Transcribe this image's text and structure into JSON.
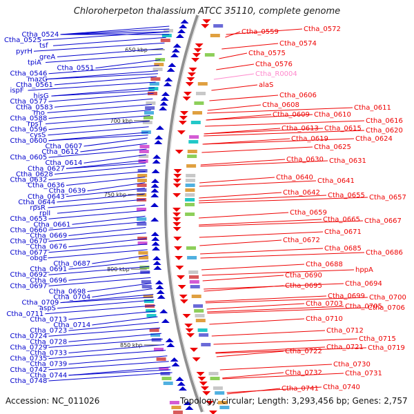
{
  "title": "Chloroherpeton thalassium ATCC 35110, complete genome",
  "accession_text": "Accession: NC_011026",
  "topology_text": "Topology: circular; Length: 3,293,456 bp; Genes: 2,757",
  "colors": {
    "forward_strand": "#0000cc",
    "reverse_strand": "#ee0000",
    "rna_label": "#ff88cc",
    "backbone": "#909090"
  },
  "kbp_marks": [
    "650 kbp",
    "700 kbp",
    "750 kbp",
    "800 kbp",
    "850 kbp"
  ],
  "left_labels": [
    "Ctha_0524",
    "Ctha_0525",
    "tsf",
    "pyrH",
    "greA",
    "tpiA",
    "Ctha_0551",
    "Ctha_0546",
    "mazG",
    "Ctha_0561",
    "ispF",
    "hisG",
    "Ctha_0577",
    "Ctha_0583",
    "rho",
    "Ctha_0588",
    "rpsT",
    "Ctha_0596",
    "cysS",
    "Ctha_0600",
    "Ctha_0607",
    "Ctha_0612",
    "Ctha_0605",
    "Ctha_0614",
    "Ctha_0627",
    "Ctha_0628",
    "Ctha_0632",
    "Ctha_0636",
    "Ctha_0639",
    "Ctha_0643",
    "Ctha_0644",
    "rpsR",
    "rplI",
    "Ctha_0653",
    "Ctha_0661",
    "Ctha_0660",
    "Ctha_0669",
    "Ctha_0670",
    "Ctha_0676",
    "Ctha_0677",
    "obgE",
    "Ctha_0687",
    "Ctha_0691",
    "Ctha_0692",
    "Ctha_0696",
    "Ctha_0697",
    "Ctha_0698",
    "Ctha_0704",
    "Ctha_0709",
    "aspS",
    "Ctha_0711",
    "Ctha_0713",
    "Ctha_0714",
    "Ctha_0723",
    "Ctha_0724",
    "Ctha_0728",
    "Ctha_0729",
    "Ctha_0733",
    "Ctha_0735",
    "Ctha_0739",
    "Ctha_0742",
    "Ctha_0744",
    "Ctha_0748"
  ],
  "right_labels": [
    "Ctha_0559",
    "Ctha_0572",
    "Ctha_0574",
    "Ctha_0575",
    "Ctha_0576",
    "Ctha_R0004",
    "alaS",
    "Ctha_0606",
    "Ctha_0608",
    "Ctha_0609",
    "Ctha_0610",
    "Ctha_0611",
    "Ctha_0616",
    "Ctha_0613",
    "Ctha_0615",
    "Ctha_0620",
    "Ctha_0619",
    "Ctha_0624",
    "Ctha_0625",
    "Ctha_0630",
    "Ctha_0631",
    "Ctha_0640",
    "Ctha_0641",
    "Ctha_0642",
    "Ctha_0655",
    "Ctha_0657",
    "Ctha_0659",
    "Ctha_0665",
    "Ctha_0667",
    "Ctha_0671",
    "Ctha_0672",
    "Ctha_0685",
    "Ctha_0686",
    "Ctha_0688",
    "hppA",
    "Ctha_0690",
    "Ctha_0695",
    "Ctha_0694",
    "Ctha_0699",
    "Ctha_0700",
    "Ctha_0703",
    "Ctha_0705",
    "Ctha_0706",
    "Ctha_0710",
    "Ctha_0712",
    "Ctha_0715",
    "Ctha_0721",
    "Ctha_0719",
    "Ctha_0722",
    "Ctha_0730",
    "Ctha_0732",
    "Ctha_0731",
    "Ctha_0741",
    "Ctha_0740"
  ]
}
